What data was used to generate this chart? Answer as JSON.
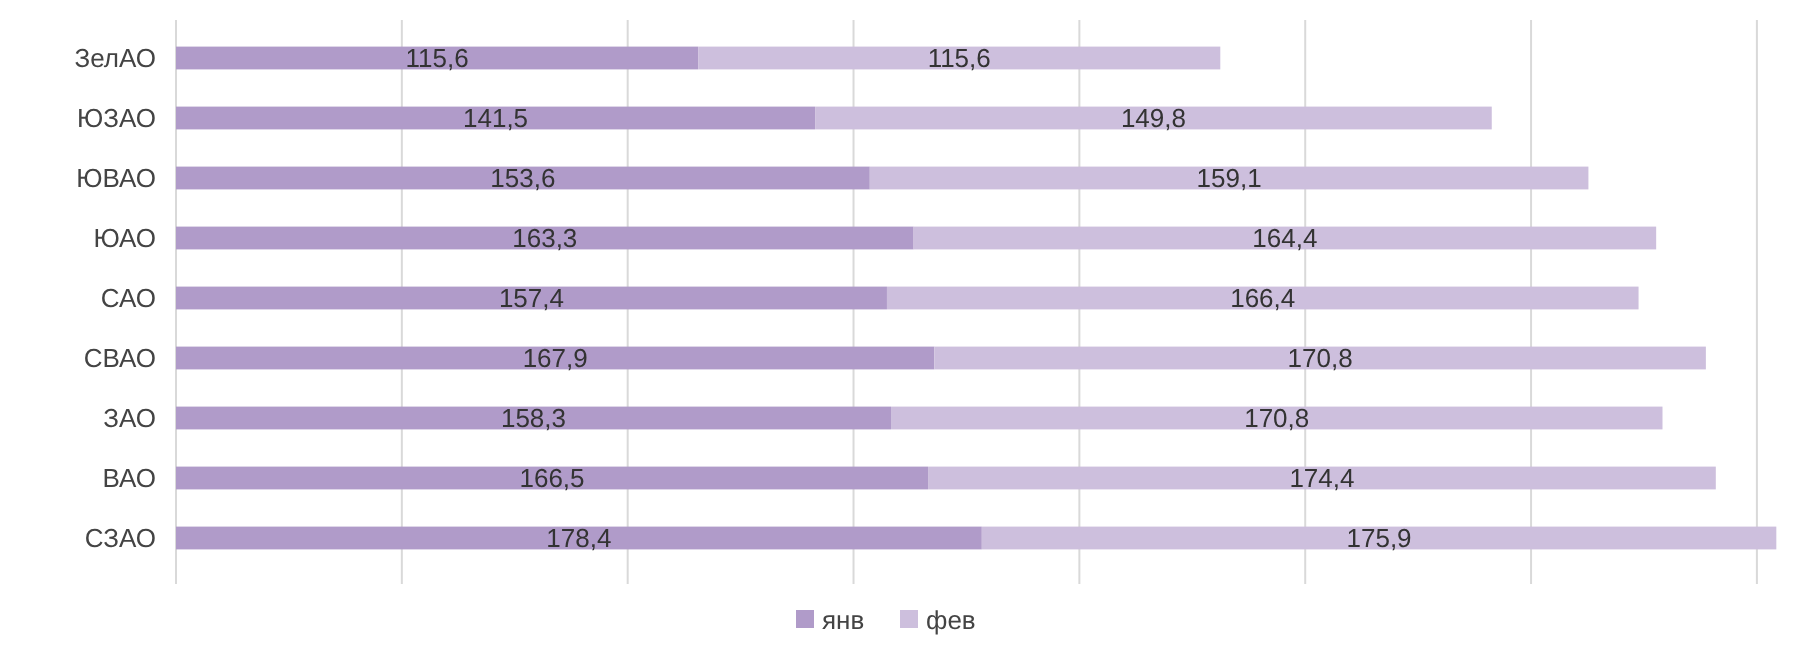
{
  "chart_data": {
    "type": "bar",
    "orientation": "horizontal",
    "stacked": true,
    "categories": [
      "ЗелАО",
      "ЮЗАО",
      "ЮВАО",
      "ЮАО",
      "САО",
      "СВАО",
      "ЗАО",
      "ВАО",
      "СЗАО"
    ],
    "series": [
      {
        "name": "янв",
        "color": "#b09bc9",
        "values": [
          115.6,
          141.5,
          153.6,
          163.3,
          157.4,
          167.9,
          158.3,
          166.5,
          178.4
        ],
        "value_labels": [
          "115,6",
          "141,5",
          "153,6",
          "163,3",
          "157,4",
          "167,9",
          "158,3",
          "166,5",
          "178,4"
        ]
      },
      {
        "name": "фев",
        "color": "#cdbfdd",
        "values": [
          115.6,
          149.8,
          159.1,
          164.4,
          166.4,
          170.8,
          170.8,
          174.4,
          175.9
        ],
        "value_labels": [
          "115,6",
          "149,8",
          "159,1",
          "164,4",
          "166,4",
          "170,8",
          "170,8",
          "174,4",
          "175,9"
        ]
      }
    ],
    "xlim": [
      0,
      356
    ],
    "xticks": [
      {
        "value": 0,
        "label": null
      },
      {
        "value": 50,
        "label": null
      },
      {
        "value": 100,
        "label": null
      },
      {
        "value": 150,
        "label": null
      },
      {
        "value": 200,
        "label": null
      },
      {
        "value": 250,
        "label": null
      },
      {
        "value": 300,
        "label": null
      },
      {
        "value": 350,
        "label": null
      }
    ],
    "tick_labels": "y",
    "grid": "x",
    "legend": "bottom"
  }
}
